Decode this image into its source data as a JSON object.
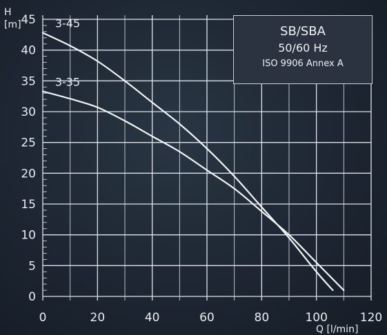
{
  "chart_data": {
    "type": "line",
    "title": "SB/SBA",
    "subtitle": "50/60 Hz",
    "standard": "ISO 9906 Annex A",
    "xlabel": "Q [l/min]",
    "ylabel": "H",
    "ylabel_unit": "[m]",
    "xlim": [
      0,
      120
    ],
    "ylim": [
      0,
      45
    ],
    "x_ticks": [
      0,
      20,
      40,
      60,
      80,
      100,
      120
    ],
    "y_ticks": [
      0,
      5,
      10,
      15,
      20,
      25,
      30,
      35,
      40,
      45
    ],
    "grid": true,
    "series": [
      {
        "name": "3-45",
        "x": [
          0,
          10,
          20,
          30,
          40,
          50,
          60,
          70,
          80,
          90,
          100,
          106
        ],
        "y": [
          42.8,
          40.7,
          38.2,
          35.0,
          31.5,
          28.0,
          24.0,
          19.5,
          14.5,
          9.5,
          4.0,
          1.0
        ]
      },
      {
        "name": "3-35",
        "x": [
          0,
          10,
          20,
          30,
          40,
          50,
          60,
          70,
          80,
          90,
          100,
          110
        ],
        "y": [
          33.3,
          32.1,
          30.7,
          28.5,
          26.0,
          23.5,
          20.5,
          17.5,
          13.8,
          10.0,
          5.5,
          1.0
        ]
      }
    ],
    "colors": {
      "line": "#f2f5f8",
      "grid": "#dfe5ea",
      "background": "#1d2632"
    }
  }
}
